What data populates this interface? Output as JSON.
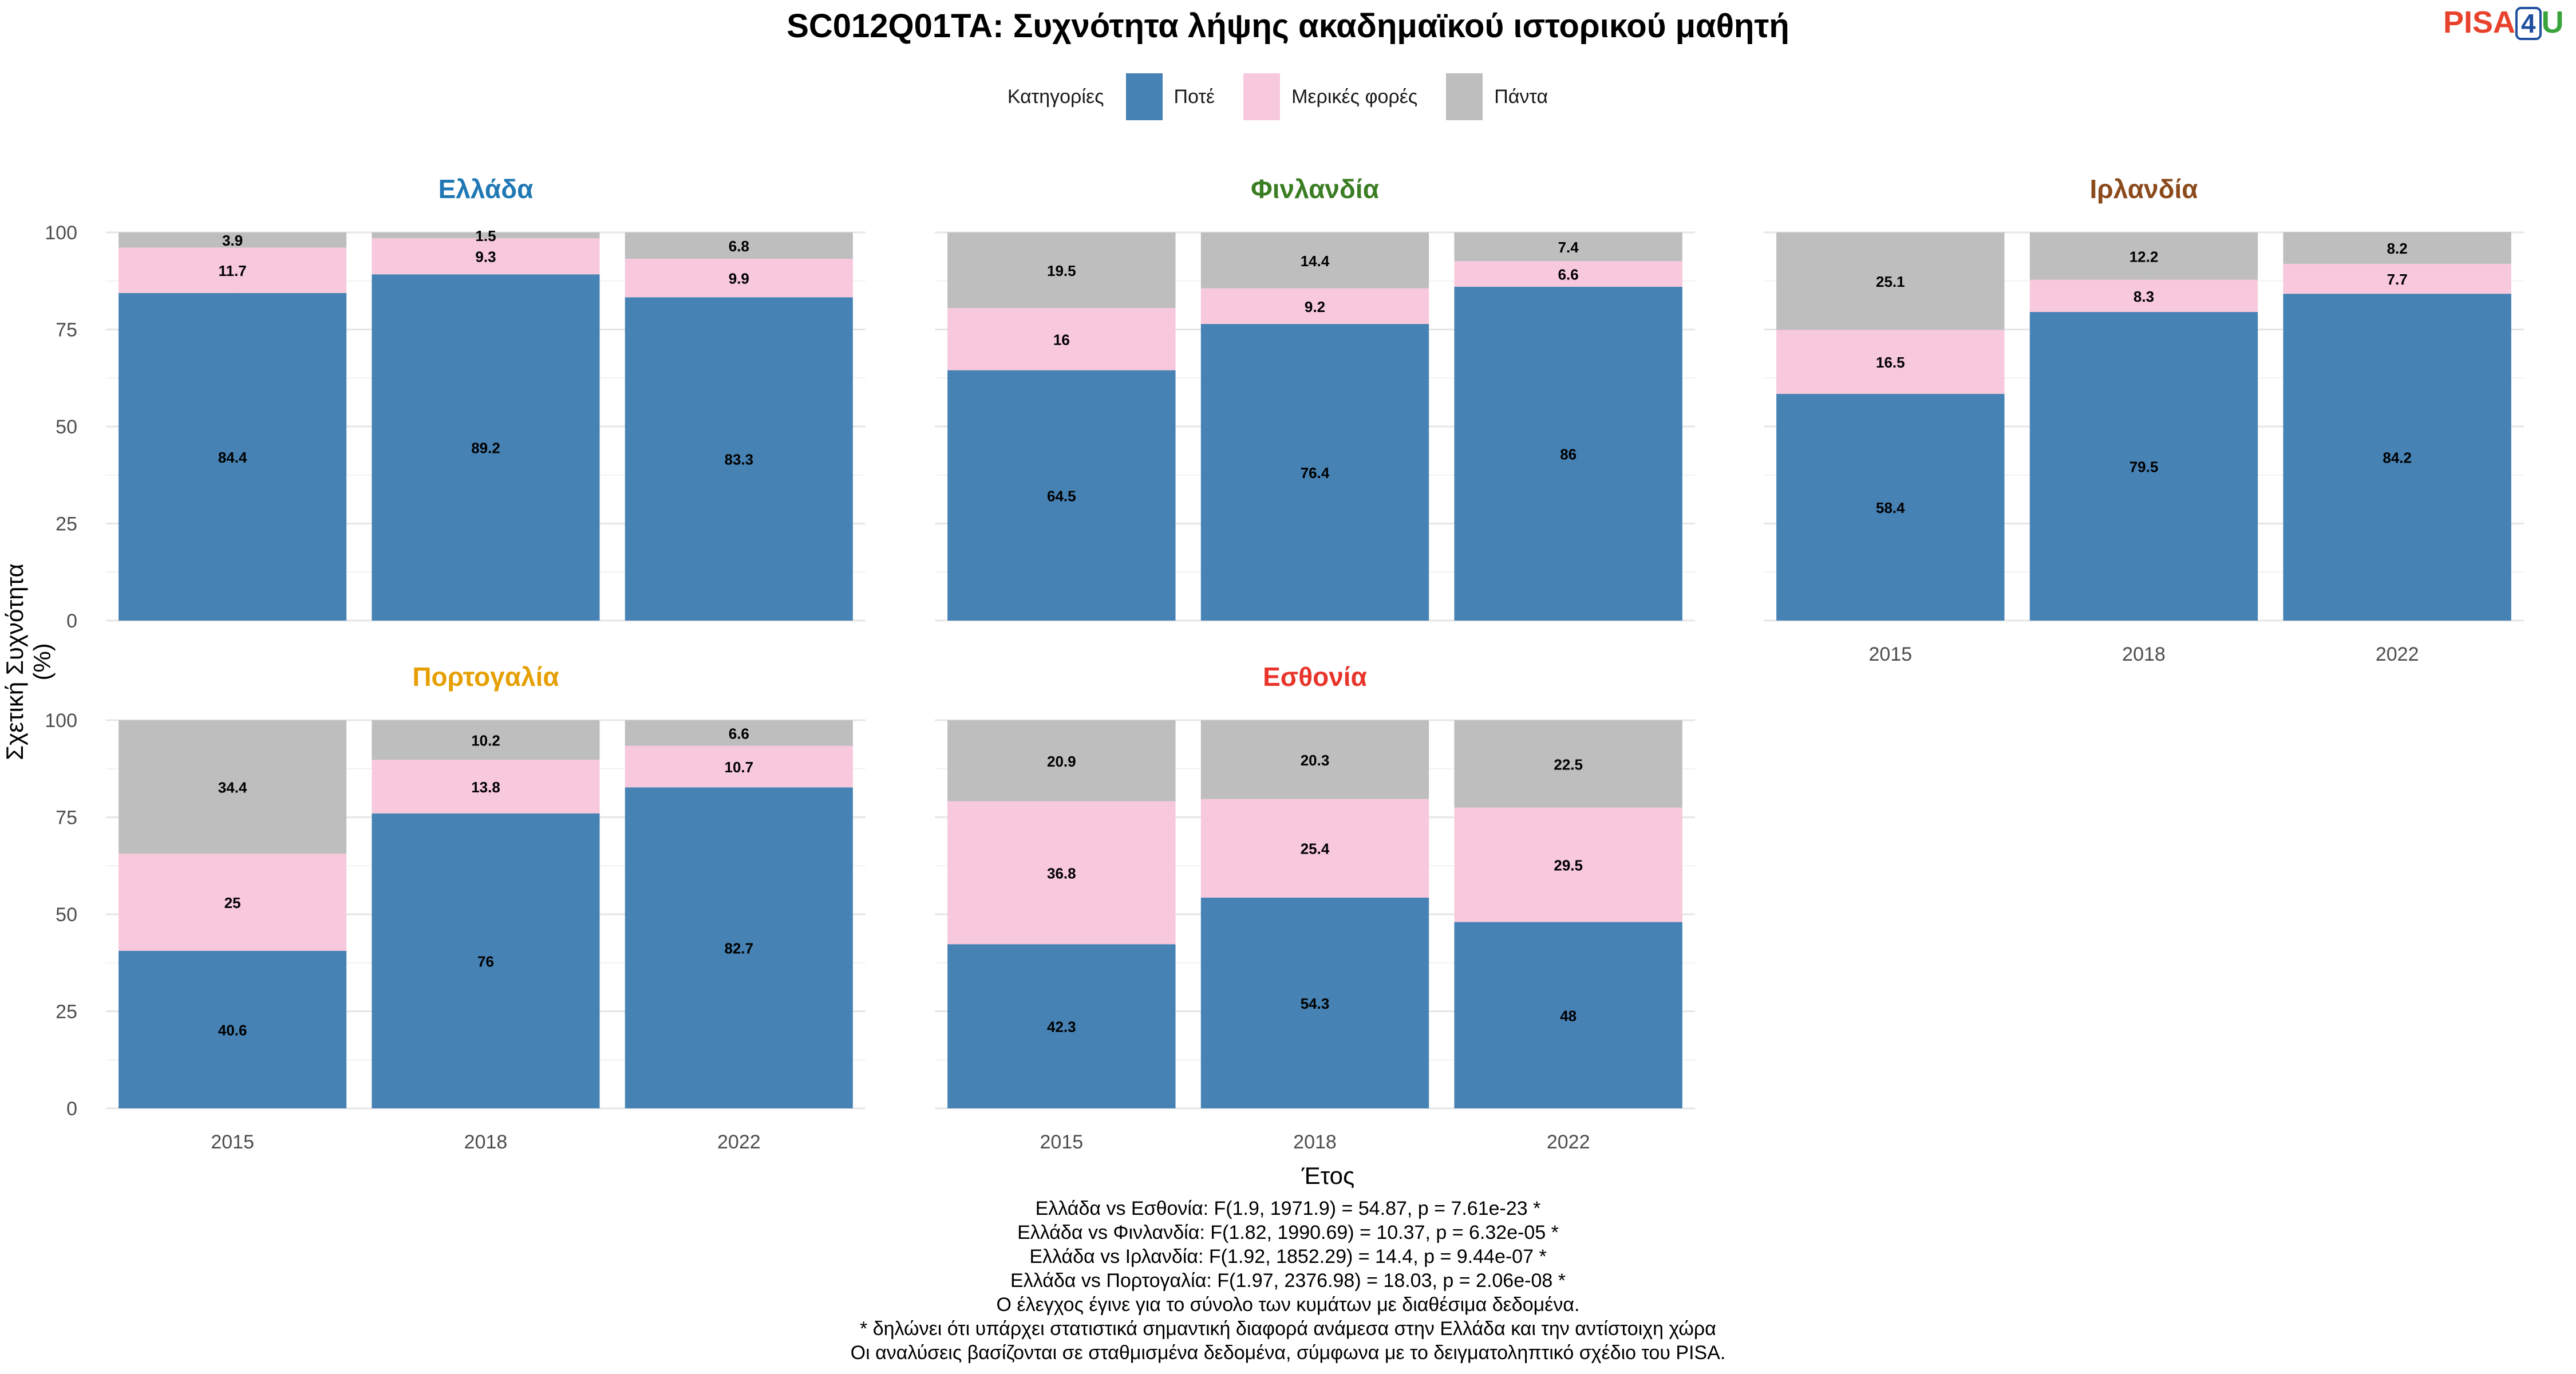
{
  "title": "SC012Q01TA: Συχνότητα λήψης ακαδημαϊκού ιστορικού μαθητή",
  "logo": {
    "part1": "PISA",
    "part2": "4",
    "part3": "U"
  },
  "legend": {
    "title": "Κατηγορίες",
    "items": [
      {
        "label": "Ποτέ",
        "color": "#4682B4"
      },
      {
        "label": "Μερικές φορές",
        "color": "#F8C8DC"
      },
      {
        "label": "Πάντα",
        "color": "#BEBEBE"
      }
    ]
  },
  "chart_data": {
    "type": "bar",
    "stacked": true,
    "xlabel": "Έτος",
    "ylabel": "Σχετική Συχνότητα (%)",
    "ylim": [
      0,
      100
    ],
    "yticks": [
      0,
      25,
      50,
      75,
      100
    ],
    "categories": [
      "2015",
      "2018",
      "2022"
    ],
    "series_names": [
      "Ποτέ",
      "Μερικές φορές",
      "Πάντα"
    ],
    "series_colors": [
      "#4682B4",
      "#F8C8DC",
      "#BEBEBE"
    ],
    "panels": [
      {
        "name": "Ελλάδα",
        "color": "#1F78B4",
        "values": [
          [
            84.4,
            11.7,
            3.9
          ],
          [
            89.2,
            9.3,
            1.5
          ],
          [
            83.3,
            9.9,
            6.8
          ]
        ]
      },
      {
        "name": "Φινλανδία",
        "color": "#3A7D22",
        "values": [
          [
            64.5,
            16,
            19.5
          ],
          [
            76.4,
            9.2,
            14.4
          ],
          [
            86,
            6.6,
            7.4
          ]
        ]
      },
      {
        "name": "Ιρλανδία",
        "color": "#8B4A1C",
        "values": [
          [
            58.4,
            16.5,
            25.1
          ],
          [
            79.5,
            8.3,
            12.2
          ],
          [
            84.2,
            7.7,
            8.2
          ]
        ]
      },
      {
        "name": "Πορτογαλία",
        "color": "#E69F00",
        "values": [
          [
            40.6,
            25,
            34.4
          ],
          [
            76,
            13.8,
            10.2
          ],
          [
            82.7,
            10.7,
            6.6
          ]
        ]
      },
      {
        "name": "Εσθονία",
        "color": "#E8342A",
        "values": [
          [
            42.3,
            36.8,
            20.9
          ],
          [
            54.3,
            25.4,
            20.3
          ],
          [
            48,
            29.5,
            22.5
          ]
        ]
      }
    ]
  },
  "footnotes": [
    "Ελλάδα vs Εσθονία: F(1.9, 1971.9) = 54.87, p = 7.61e-23 *",
    "Ελλάδα vs Φινλανδία: F(1.82, 1990.69) = 10.37, p = 6.32e-05 *",
    "Ελλάδα vs Ιρλανδία: F(1.92, 1852.29) = 14.4, p = 9.44e-07 *",
    "Ελλάδα vs Πορτογαλία: F(1.97, 2376.98) = 18.03, p = 2.06e-08 *",
    "Ο έλεγχος έγινε για το σύνολο των κυμάτων με διαθέσιμα δεδομένα.",
    "* δηλώνει ότι υπάρχει στατιστικά σημαντική διαφορά ανάμεσα στην Ελλάδα και την αντίστοιχη χώρα",
    "Οι αναλύσεις βασίζονται σε σταθμισμένα δεδομένα, σύμφωνα με το δειγματοληπτικό σχέδιο του PISA."
  ]
}
